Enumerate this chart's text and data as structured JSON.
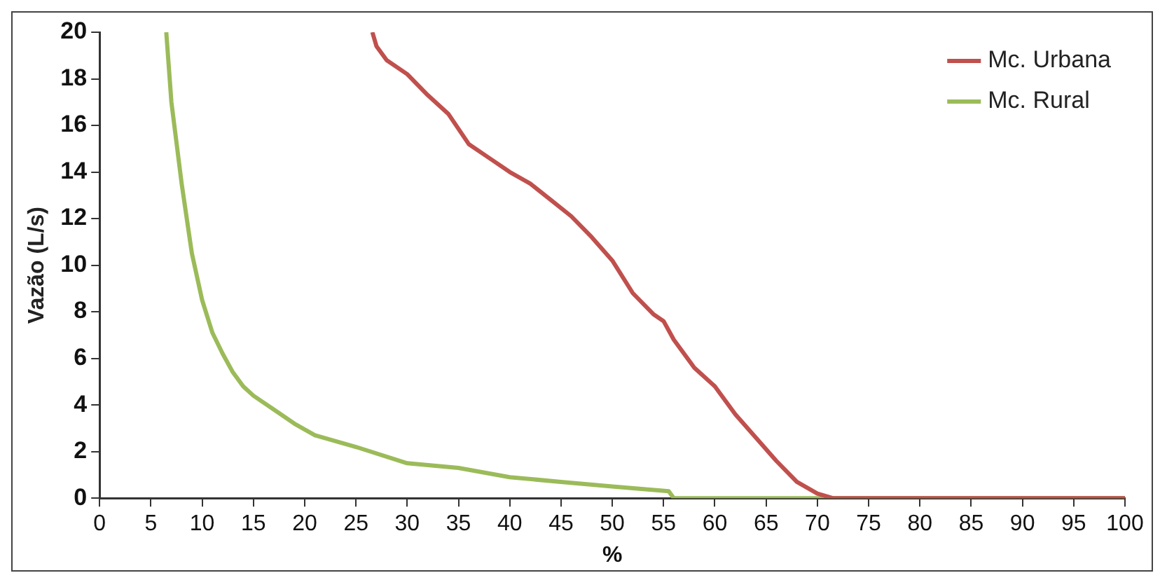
{
  "chart_data": {
    "type": "line",
    "xlabel": "%",
    "ylabel": "Vazão (L/s)",
    "xlim": [
      0,
      100
    ],
    "xticks": [
      0,
      5,
      10,
      15,
      20,
      25,
      30,
      35,
      40,
      45,
      50,
      55,
      60,
      65,
      70,
      75,
      80,
      85,
      90,
      95,
      100
    ],
    "ylim": [
      0,
      20
    ],
    "yticks": [
      0,
      2,
      4,
      6,
      8,
      10,
      12,
      14,
      16,
      18,
      20
    ],
    "grid": false,
    "legend": "top right",
    "marker": "none",
    "line_style": "solid",
    "series": [
      {
        "name": "Mc. Urbana",
        "color": "#c0504d",
        "x": [
          26.6,
          27,
          28,
          30,
          32,
          34,
          36,
          38,
          40,
          42,
          44,
          46,
          48,
          50,
          52,
          54,
          55,
          56,
          58,
          60,
          62,
          64,
          66,
          68,
          70,
          71.5,
          100
        ],
        "values": [
          20,
          19.4,
          18.8,
          18.2,
          17.3,
          16.5,
          15.2,
          14.6,
          14,
          13.5,
          12.8,
          12.1,
          11.2,
          10.2,
          8.8,
          7.9,
          7.6,
          6.8,
          5.6,
          4.8,
          3.6,
          2.6,
          1.6,
          0.7,
          0.2,
          0,
          0
        ]
      },
      {
        "name": "Mc. Rural",
        "color": "#9bbb59",
        "x": [
          6.5,
          7,
          8,
          9,
          10,
          11,
          12,
          13,
          14,
          15,
          17,
          19,
          21,
          25,
          30,
          35,
          40,
          45,
          50,
          55.5,
          56,
          100
        ],
        "values": [
          20,
          17,
          13.5,
          10.5,
          8.5,
          7.1,
          6.2,
          5.4,
          4.8,
          4.4,
          3.8,
          3.2,
          2.7,
          2.2,
          1.5,
          1.3,
          0.9,
          0.7,
          0.5,
          0.3,
          0,
          0
        ]
      }
    ]
  }
}
